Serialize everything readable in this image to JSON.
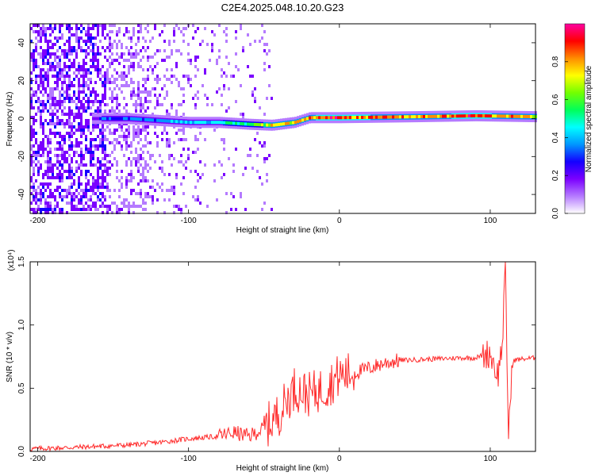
{
  "title": "C2E4.2025.048.10.20.G23",
  "chart_data": [
    {
      "type": "heatmap",
      "xlabel": "Height of straight line (km)",
      "ylabel": "Frequency (Hz)",
      "xlim": [
        -205,
        130
      ],
      "ylim": [
        -50,
        50
      ],
      "xticks": [
        -200,
        -100,
        0,
        100
      ],
      "yticks": [
        -40,
        -20,
        0,
        20,
        40
      ],
      "colorbar": {
        "label": "Normalized spectral amplitude",
        "range": [
          0.0,
          1.0
        ],
        "ticks": [
          "0.0",
          "0.2",
          "0.4",
          "0.6",
          "0.8"
        ],
        "colors": [
          "#ffffff",
          "#b57bff",
          "#7b00ff",
          "#1400ff",
          "#0096ff",
          "#00ffff",
          "#00ff5a",
          "#73ff00",
          "#ffff00",
          "#ff8c00",
          "#ff0000",
          "#ff00a0"
        ]
      },
      "ridge": [
        {
          "x": -160,
          "y": 0.0,
          "amplitude": 0.3
        },
        {
          "x": -140,
          "y": 0.0,
          "amplitude": 0.35
        },
        {
          "x": -120,
          "y": -1.0,
          "amplitude": 0.4
        },
        {
          "x": -100,
          "y": -2.0,
          "amplitude": 0.45
        },
        {
          "x": -80,
          "y": -2.0,
          "amplitude": 0.5
        },
        {
          "x": -60,
          "y": -3.0,
          "amplitude": 0.55
        },
        {
          "x": -45,
          "y": -3.5,
          "amplitude": 0.8
        },
        {
          "x": -30,
          "y": -2.0,
          "amplitude": 0.8
        },
        {
          "x": -20,
          "y": 0.5,
          "amplitude": 0.9
        },
        {
          "x": 0,
          "y": 0.5,
          "amplitude": 0.95
        },
        {
          "x": 50,
          "y": 1.0,
          "amplitude": 0.85
        },
        {
          "x": 90,
          "y": 1.5,
          "amplitude": 0.95
        },
        {
          "x": 130,
          "y": 1.0,
          "amplitude": 0.8
        }
      ]
    },
    {
      "type": "line",
      "xlabel": "Height of straight line (km)",
      "ylabel": "SNR (10 * v/v)",
      "yscale_label": "(x10⁴)",
      "xlim": [
        -205,
        130
      ],
      "ylim": [
        0.0,
        1.5
      ],
      "xticks": [
        -200,
        -100,
        0,
        100
      ],
      "yticks": [
        "0.0",
        "0.5",
        "1.0",
        "1.5"
      ],
      "series": [
        {
          "color": "#ff2a2a",
          "x": [
            -205,
            -180,
            -160,
            -140,
            -120,
            -100,
            -80,
            -70,
            -60,
            -50,
            -40,
            -30,
            -20,
            -10,
            0,
            10,
            20,
            30,
            40,
            60,
            80,
            90,
            100,
            105,
            108,
            110,
            112,
            115,
            120,
            130
          ],
          "y": [
            0.02,
            0.03,
            0.04,
            0.05,
            0.07,
            0.1,
            0.12,
            0.15,
            0.12,
            0.18,
            0.3,
            0.5,
            0.45,
            0.5,
            0.6,
            0.62,
            0.66,
            0.7,
            0.72,
            0.73,
            0.74,
            0.74,
            0.78,
            0.6,
            0.85,
            1.45,
            0.15,
            0.72,
            0.73,
            0.74
          ]
        }
      ]
    }
  ]
}
